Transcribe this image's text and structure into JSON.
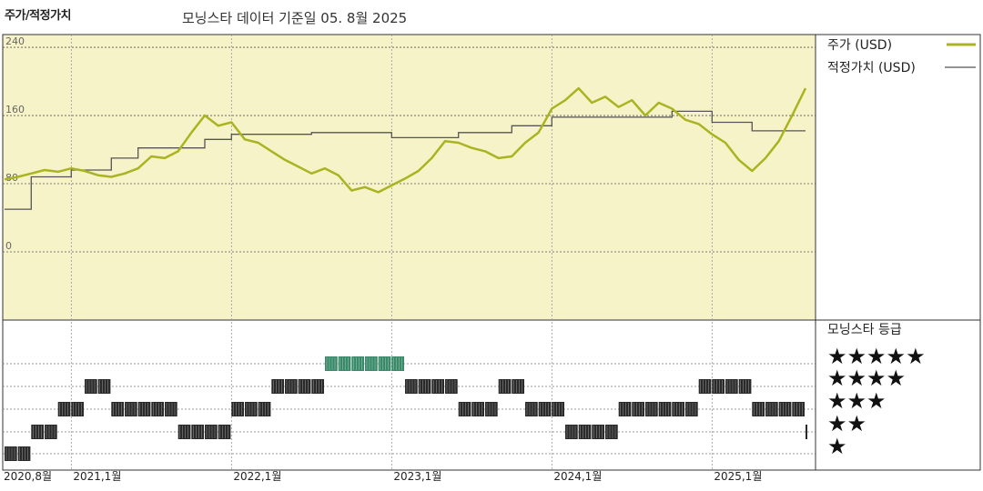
{
  "header": {
    "left_title": "주가/적정가치",
    "subtitle": "모닝스타 데이터 기준일 05. 8월 2025"
  },
  "legend": {
    "price_label": "주가 (USD)",
    "fair_value_label": "적정가치 (USD)",
    "rating_title": "모닝스타 등급",
    "stars": [
      "★★★★★",
      "★★★★",
      "★★★",
      "★★",
      "★"
    ]
  },
  "colors": {
    "price": "#aab321",
    "fair_value": "#555555",
    "panel_bg": "#f7f3c8",
    "five_star": "#3a8a6a",
    "bar": "#2a2a2a"
  },
  "chart_data": {
    "type": "line",
    "y_ticks": [
      240,
      160,
      80,
      0
    ],
    "ylim": [
      -80,
      255
    ],
    "x_ticks": [
      "2020,8월",
      "2021,1월",
      "2022,1월",
      "2023,1월",
      "2024,1월",
      "2025,1월"
    ],
    "series": [
      {
        "name": "주가 (USD)",
        "x": [
          "2020-08",
          "2020-09",
          "2020-10",
          "2020-11",
          "2020-12",
          "2021-01",
          "2021-02",
          "2021-03",
          "2021-04",
          "2021-05",
          "2021-06",
          "2021-07",
          "2021-08",
          "2021-09",
          "2021-10",
          "2021-11",
          "2021-12",
          "2022-01",
          "2022-02",
          "2022-03",
          "2022-04",
          "2022-05",
          "2022-06",
          "2022-07",
          "2022-08",
          "2022-09",
          "2022-10",
          "2022-11",
          "2022-12",
          "2023-01",
          "2023-02",
          "2023-03",
          "2023-04",
          "2023-05",
          "2023-06",
          "2023-07",
          "2023-08",
          "2023-09",
          "2023-10",
          "2023-11",
          "2023-12",
          "2024-01",
          "2024-02",
          "2024-03",
          "2024-04",
          "2024-05",
          "2024-06",
          "2024-07",
          "2024-08",
          "2024-09",
          "2024-10",
          "2024-11",
          "2024-12",
          "2025-01",
          "2025-02",
          "2025-03",
          "2025-04",
          "2025-05",
          "2025-06",
          "2025-07",
          "2025-08"
        ],
        "values": [
          85,
          88,
          92,
          96,
          94,
          98,
          95,
          90,
          88,
          92,
          98,
          112,
          110,
          118,
          140,
          160,
          148,
          152,
          132,
          128,
          118,
          108,
          100,
          92,
          98,
          90,
          72,
          76,
          70,
          78,
          86,
          95,
          110,
          130,
          128,
          122,
          118,
          110,
          112,
          128,
          140,
          168,
          178,
          192,
          175,
          182,
          170,
          178,
          160,
          175,
          168,
          155,
          150,
          138,
          128,
          108,
          95,
          110,
          130,
          160,
          192
        ]
      },
      {
        "name": "적정가치 (USD)",
        "x": [
          "2020-08",
          "2020-10",
          "2020-10",
          "2021-01",
          "2021-01",
          "2021-04",
          "2021-04",
          "2021-06",
          "2021-06",
          "2021-11",
          "2021-11",
          "2022-01",
          "2022-01",
          "2022-07",
          "2022-07",
          "2023-01",
          "2023-01",
          "2023-06",
          "2023-06",
          "2023-10",
          "2023-10",
          "2024-01",
          "2024-01",
          "2024-10",
          "2024-10",
          "2025-01",
          "2025-01",
          "2025-04",
          "2025-04",
          "2025-08"
        ],
        "values": [
          50,
          50,
          88,
          88,
          96,
          96,
          110,
          110,
          122,
          122,
          132,
          132,
          138,
          138,
          140,
          140,
          134,
          134,
          140,
          140,
          148,
          148,
          158,
          158,
          165,
          165,
          152,
          152,
          142,
          142
        ]
      }
    ],
    "ratings": {
      "x": [
        "2020-08",
        "2020-09",
        "2020-10",
        "2020-11",
        "2020-12",
        "2021-01",
        "2021-02",
        "2021-03",
        "2021-04",
        "2021-05",
        "2021-06",
        "2021-07",
        "2021-08",
        "2021-09",
        "2021-10",
        "2021-11",
        "2021-12",
        "2022-01",
        "2022-02",
        "2022-03",
        "2022-04",
        "2022-05",
        "2022-06",
        "2022-07",
        "2022-08",
        "2022-09",
        "2022-10",
        "2022-11",
        "2022-12",
        "2023-01",
        "2023-02",
        "2023-03",
        "2023-04",
        "2023-05",
        "2023-06",
        "2023-07",
        "2023-08",
        "2023-09",
        "2023-10",
        "2023-11",
        "2023-12",
        "2024-01",
        "2024-02",
        "2024-03",
        "2024-04",
        "2024-05",
        "2024-06",
        "2024-07",
        "2024-08",
        "2024-09",
        "2024-10",
        "2024-11",
        "2024-12",
        "2025-01",
        "2025-02",
        "2025-03",
        "2025-04",
        "2025-05",
        "2025-06",
        "2025-07",
        "2025-08"
      ],
      "stars": [
        1,
        1,
        2,
        2,
        3,
        3,
        4,
        4,
        3,
        3,
        3,
        3,
        3,
        2,
        2,
        2,
        2,
        3,
        3,
        3,
        4,
        4,
        4,
        4,
        5,
        5,
        5,
        5,
        5,
        5,
        4,
        4,
        4,
        4,
        3,
        3,
        3,
        4,
        4,
        3,
        3,
        3,
        2,
        2,
        2,
        2,
        3,
        3,
        3,
        3,
        3,
        3,
        4,
        4,
        4,
        4,
        3,
        3,
        3,
        3,
        2
      ]
    }
  }
}
